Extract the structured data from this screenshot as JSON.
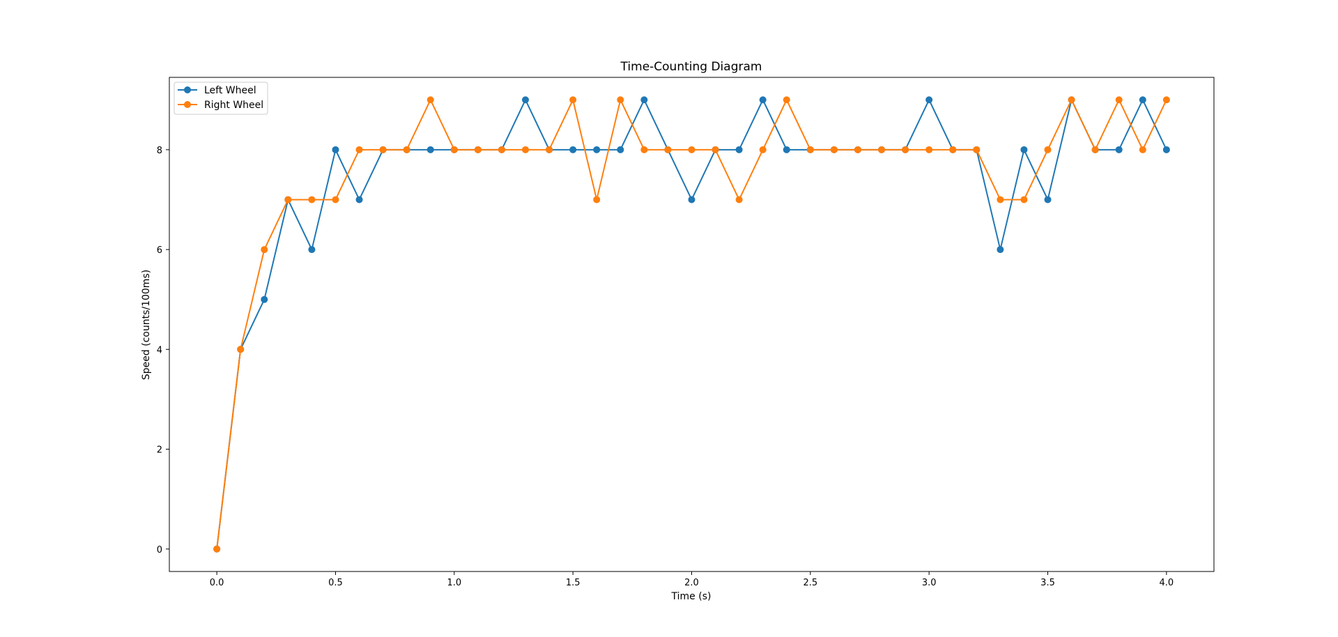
{
  "chart_data": {
    "type": "line",
    "title": "Time-Counting Diagram",
    "xlabel": "Time (s)",
    "ylabel": "Speed (counts/100ms)",
    "xlim": [
      -0.2,
      4.2
    ],
    "ylim": [
      -0.45,
      9.45
    ],
    "xticks": [
      0.0,
      0.5,
      1.0,
      1.5,
      2.0,
      2.5,
      3.0,
      3.5,
      4.0
    ],
    "xtick_labels": [
      "0.0",
      "0.5",
      "1.0",
      "1.5",
      "2.0",
      "2.5",
      "3.0",
      "3.5",
      "4.0"
    ],
    "yticks": [
      0,
      2,
      4,
      6,
      8
    ],
    "ytick_labels": [
      "0",
      "2",
      "4",
      "6",
      "8"
    ],
    "grid": false,
    "legend_position": "top-left",
    "x": [
      0.0,
      0.1,
      0.2,
      0.3,
      0.4,
      0.5,
      0.6,
      0.7,
      0.8,
      0.9,
      1.0,
      1.1,
      1.2,
      1.3,
      1.4,
      1.5,
      1.6,
      1.7,
      1.8,
      1.9,
      2.0,
      2.1,
      2.2,
      2.3,
      2.4,
      2.5,
      2.6,
      2.7,
      2.8,
      2.9,
      3.0,
      3.1,
      3.2,
      3.3,
      3.4,
      3.5,
      3.6,
      3.7,
      3.8,
      3.9,
      4.0
    ],
    "series": [
      {
        "name": "Left Wheel",
        "color": "#1f77b4",
        "values": [
          0,
          4,
          5,
          7,
          6,
          8,
          7,
          8,
          8,
          8,
          8,
          8,
          8,
          9,
          8,
          8,
          8,
          8,
          9,
          8,
          7,
          8,
          8,
          9,
          8,
          8,
          8,
          8,
          8,
          8,
          9,
          8,
          8,
          6,
          8,
          7,
          9,
          8,
          8,
          9,
          8
        ]
      },
      {
        "name": "Right Wheel",
        "color": "#ff7f0e",
        "values": [
          0,
          4,
          6,
          7,
          7,
          7,
          8,
          8,
          8,
          9,
          8,
          8,
          8,
          8,
          8,
          9,
          7,
          9,
          8,
          8,
          8,
          8,
          7,
          8,
          9,
          8,
          8,
          8,
          8,
          8,
          8,
          8,
          8,
          7,
          7,
          8,
          9,
          8,
          9,
          8,
          9
        ]
      }
    ]
  }
}
